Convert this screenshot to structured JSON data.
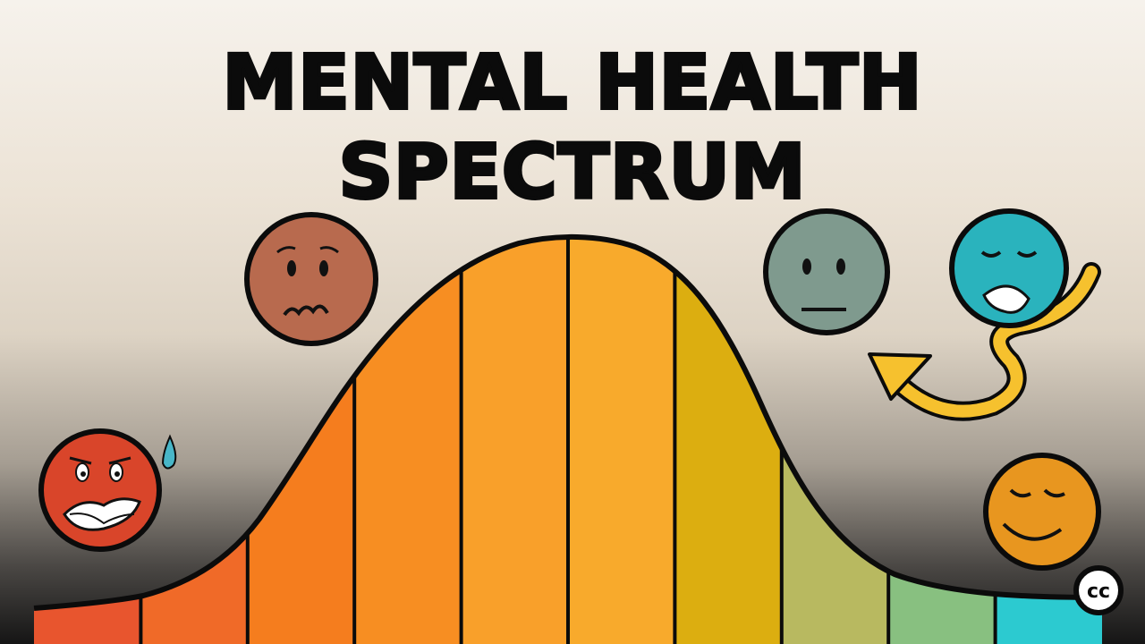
{
  "title": "MENTAL HEALTH SPECTRUM",
  "badge": "cc",
  "colors": {
    "stripes": [
      "#e8552e",
      "#f06a28",
      "#f57d1e",
      "#f78e22",
      "#f9a02a",
      "#f8aa2c",
      "#dcae10",
      "#b8b960",
      "#88c080",
      "#2ccad0"
    ],
    "faces": {
      "anxious_red": "#d9452a",
      "worried_brown": "#b86a4e",
      "neutral_gray": "#7f9a8e",
      "distressed_teal": "#2ab3bd",
      "calm_orange": "#e8961f"
    },
    "arrow": "#f6c12e"
  },
  "faces": [
    "anxious",
    "worried",
    "neutral",
    "distressed",
    "calm"
  ]
}
